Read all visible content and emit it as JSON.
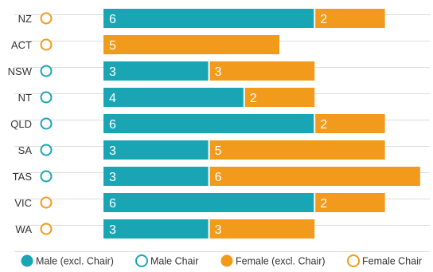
{
  "colors": {
    "male": "#1aa5b5",
    "female": "#f29a1c",
    "gridline": "#dddddd",
    "separator": "#ffffff"
  },
  "chart_data": {
    "type": "bar",
    "orientation": "horizontal",
    "stacked": true,
    "categories": [
      "NZ",
      "ACT",
      "NSW",
      "NT",
      "QLD",
      "SA",
      "TAS",
      "VIC",
      "WA"
    ],
    "chair": [
      "Female Chair",
      "Female Chair",
      "Male Chair",
      "Male Chair",
      "Male Chair",
      "Male Chair",
      "Male Chair",
      "Female Chair",
      "Female Chair"
    ],
    "series": [
      {
        "name": "Male (excl. Chair)",
        "color": "#1aa5b5",
        "values": [
          6,
          0,
          3,
          4,
          6,
          3,
          3,
          6,
          3
        ]
      },
      {
        "name": "Female (excl. Chair)",
        "color": "#f29a1c",
        "values": [
          2,
          5,
          3,
          2,
          2,
          5,
          6,
          2,
          3
        ]
      }
    ],
    "xlim": [
      0,
      9
    ],
    "grid": "horizontal",
    "legend": {
      "position": "bottom",
      "items": [
        {
          "label": "Male (excl. Chair)",
          "marker": "filled",
          "color": "#1aa5b5"
        },
        {
          "label": "Male Chair",
          "marker": "hollow",
          "color": "#1aa5b5"
        },
        {
          "label": "Female (excl. Chair)",
          "marker": "filled",
          "color": "#f29a1c"
        },
        {
          "label": "Female Chair",
          "marker": "hollow",
          "color": "#f29a1c"
        }
      ]
    }
  }
}
